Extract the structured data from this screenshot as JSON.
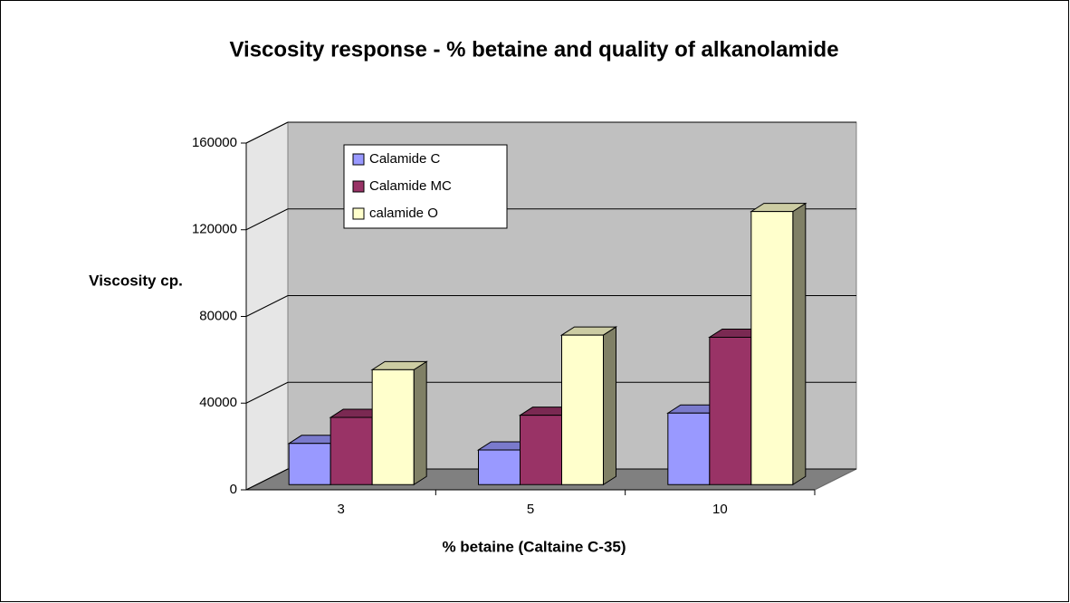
{
  "chart_data": {
    "type": "bar3d",
    "title": "Viscosity response - % betaine and quality of alkanolamide",
    "y_label": "Viscosity cp.",
    "x_label": "% betaine (Caltaine C-35)",
    "categories": [
      "3",
      "5",
      "10"
    ],
    "series": [
      {
        "name": "Calamide C",
        "color": "#9999ff",
        "values": [
          19000,
          16000,
          33000
        ]
      },
      {
        "name": "Calamide MC",
        "color": "#993366",
        "values": [
          31000,
          32000,
          68000
        ]
      },
      {
        "name": "calamide O",
        "color": "#ffffcc",
        "values": [
          53000,
          69000,
          126000
        ]
      }
    ],
    "ylim": [
      0,
      160000
    ],
    "yticks": [
      0,
      40000,
      80000,
      120000,
      160000
    ],
    "grid": true,
    "legend": "top-left"
  }
}
